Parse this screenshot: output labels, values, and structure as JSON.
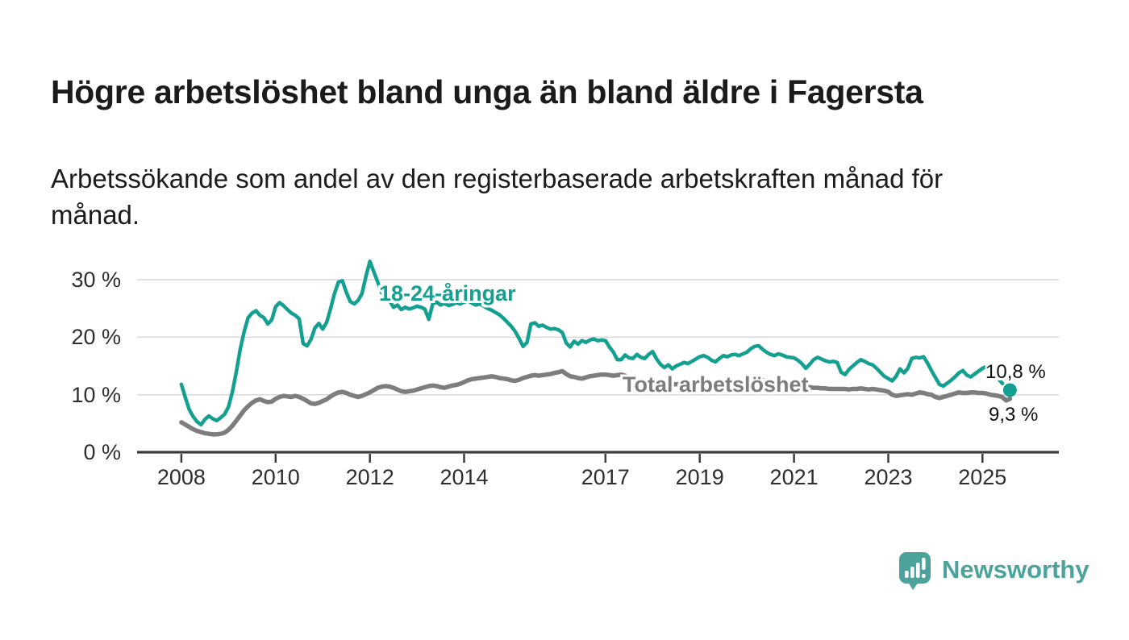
{
  "title": "Högre arbetslöshet bland unga än bland äldre i Fagersta",
  "subtitle": {
    "full": "Arbetssökande som andel av den registerbaserade arbetskraften månad för månad.",
    "line1": "Arbetssökande som andel av den registerbaserade arbetskraften månad för",
    "line2": "månad."
  },
  "branding": {
    "name": "Newsworthy",
    "color": "#4BA39C"
  },
  "colors": {
    "young_line": "#14A091",
    "total_line": "#7D7D7D",
    "grid": "#D9D9D9",
    "axis": "#3C3C3C",
    "text": "#1B1B1B"
  },
  "chart_data": {
    "type": "line",
    "title": "Högre arbetslöshet bland unga än bland äldre i Fagersta",
    "subtitle": "Arbetssökande som andel av den registerbaserade arbetskraften månad för månad.",
    "unit": "% av registerbaserad arbetskraft",
    "frequency": "monthly",
    "x_start_year": 2008,
    "x_step_years": 0.08333,
    "xlim": [
      2007.06,
      2026.62
    ],
    "ylim": [
      0,
      35
    ],
    "grid": "horizontal",
    "legend_position": "inline-labels",
    "grid_color": "#D9D9D9",
    "axis_color": "#3C3C3C",
    "x_ticks": [
      {
        "value": 2008,
        "label": "2008"
      },
      {
        "value": 2010,
        "label": "2010"
      },
      {
        "value": 2012,
        "label": "2012"
      },
      {
        "value": 2014,
        "label": "2014"
      },
      {
        "value": 2017,
        "label": "2017"
      },
      {
        "value": 2019,
        "label": "2019"
      },
      {
        "value": 2021,
        "label": "2021"
      },
      {
        "value": 2023,
        "label": "2023"
      },
      {
        "value": 2025,
        "label": "2025"
      }
    ],
    "y_ticks": [
      {
        "value": 0,
        "label": "0 %"
      },
      {
        "value": 10,
        "label": "10 %"
      },
      {
        "value": 20,
        "label": "20 %"
      },
      {
        "value": 30,
        "label": "30 %"
      }
    ],
    "series": [
      {
        "id": "young",
        "name": "18-24-åringar",
        "color": "#14A091",
        "width": 4.5,
        "end_label": "10,8 %",
        "end_value": 10.8,
        "end_dot": true,
        "dash_tail_points": 5,
        "values": [
          11.8,
          9.5,
          7.4,
          6.2,
          5.3,
          4.8,
          5.7,
          6.3,
          5.8,
          5.5,
          6.0,
          6.6,
          7.9,
          10.5,
          14.0,
          18.0,
          21.0,
          23.4,
          24.2,
          24.6,
          23.8,
          23.4,
          22.3,
          23.0,
          25.3,
          26.0,
          25.5,
          24.8,
          24.2,
          23.8,
          23.2,
          18.9,
          18.5,
          19.6,
          21.6,
          22.4,
          21.4,
          22.6,
          25.0,
          27.6,
          29.6,
          29.8,
          27.8,
          26.2,
          25.8,
          26.4,
          27.6,
          30.6,
          33.2,
          31.4,
          29.6,
          27.7,
          28.1,
          26.4,
          25.2,
          25.6,
          24.8,
          25.2,
          24.9,
          25.1,
          25.4,
          25.2,
          24.9,
          23.1,
          25.8,
          26.1,
          25.6,
          25.9,
          25.5,
          25.7,
          26.0,
          25.8,
          26.1,
          26.3,
          25.9,
          25.6,
          25.8,
          25.4,
          25.0,
          24.7,
          24.3,
          23.9,
          23.3,
          22.6,
          21.9,
          21.0,
          19.8,
          18.4,
          19.1,
          22.3,
          22.5,
          21.9,
          22.1,
          21.7,
          21.4,
          21.5,
          21.3,
          20.8,
          19.0,
          18.3,
          19.3,
          18.8,
          19.4,
          19.1,
          19.5,
          19.7,
          19.4,
          19.5,
          19.4,
          18.3,
          17.4,
          16.1,
          16.1,
          16.9,
          16.4,
          16.3,
          17.0,
          16.5,
          16.3,
          17.0,
          17.5,
          16.2,
          15.3,
          14.7,
          15.2,
          14.5,
          15.0,
          15.3,
          15.6,
          15.4,
          15.8,
          16.2,
          16.6,
          16.8,
          16.5,
          16.0,
          15.7,
          16.3,
          16.8,
          16.6,
          16.9,
          17.0,
          16.8,
          17.1,
          17.4,
          18.0,
          18.4,
          18.5,
          17.9,
          17.4,
          17.0,
          16.8,
          17.1,
          16.9,
          16.6,
          16.5,
          16.4,
          16.0,
          15.4,
          14.6,
          15.3,
          16.1,
          16.5,
          16.2,
          15.9,
          15.7,
          15.8,
          15.6,
          13.9,
          13.5,
          14.4,
          15.0,
          15.6,
          16.1,
          15.8,
          15.4,
          15.2,
          14.6,
          13.9,
          13.2,
          12.8,
          12.4,
          13.2,
          14.5,
          13.8,
          14.6,
          16.3,
          16.5,
          16.4,
          16.6,
          15.5,
          14.2,
          13.0,
          11.8,
          11.5,
          12.0,
          12.5,
          13.1,
          13.8,
          14.2,
          13.4,
          13.1,
          13.6,
          14.1,
          14.6,
          14.9,
          14.4,
          13.6,
          12.8,
          12.0,
          11.3,
          10.8
        ]
      },
      {
        "id": "total",
        "name": "Total arbetslöshet",
        "color": "#7D7D7D",
        "width": 5.5,
        "end_label": "9,3 %",
        "end_value": 9.3,
        "end_dot": false,
        "dash_tail_points": 0,
        "values": [
          5.2,
          4.8,
          4.4,
          4.0,
          3.7,
          3.5,
          3.3,
          3.2,
          3.1,
          3.1,
          3.2,
          3.4,
          3.9,
          4.6,
          5.5,
          6.4,
          7.3,
          8.0,
          8.6,
          9.0,
          9.2,
          8.9,
          8.7,
          8.8,
          9.3,
          9.6,
          9.8,
          9.7,
          9.6,
          9.8,
          9.6,
          9.3,
          8.9,
          8.5,
          8.4,
          8.6,
          8.9,
          9.2,
          9.7,
          10.1,
          10.4,
          10.5,
          10.3,
          10.0,
          9.8,
          9.6,
          9.8,
          10.1,
          10.4,
          10.8,
          11.2,
          11.4,
          11.5,
          11.4,
          11.2,
          10.9,
          10.6,
          10.5,
          10.6,
          10.7,
          10.9,
          11.1,
          11.3,
          11.5,
          11.6,
          11.5,
          11.3,
          11.2,
          11.4,
          11.6,
          11.7,
          11.9,
          12.2,
          12.5,
          12.7,
          12.8,
          12.9,
          13.0,
          13.1,
          13.2,
          13.1,
          12.9,
          12.8,
          12.7,
          12.5,
          12.4,
          12.6,
          12.9,
          13.1,
          13.3,
          13.4,
          13.3,
          13.4,
          13.5,
          13.6,
          13.8,
          13.9,
          14.1,
          13.6,
          13.2,
          13.1,
          12.9,
          12.8,
          13.0,
          13.2,
          13.3,
          13.4,
          13.5,
          13.5,
          13.4,
          13.3,
          13.4,
          13.5,
          13.3,
          12.9,
          12.5,
          12.3,
          12.2,
          12.2,
          12.1,
          12.1,
          12.0,
          12.0,
          11.9,
          11.9,
          11.8,
          11.8,
          11.9,
          11.9,
          12.0,
          12.0,
          12.1,
          12.1,
          12.0,
          11.9,
          11.9,
          11.8,
          11.8,
          11.9,
          11.9,
          12.0,
          12.0,
          12.1,
          12.2,
          12.3,
          12.5,
          12.6,
          12.6,
          12.5,
          12.4,
          12.3,
          12.2,
          12.1,
          12.0,
          11.9,
          11.8,
          11.7,
          11.6,
          11.5,
          11.4,
          11.3,
          11.2,
          11.2,
          11.1,
          11.1,
          11.0,
          11.0,
          11.0,
          11.0,
          11.0,
          10.9,
          11.0,
          11.0,
          11.1,
          11.0,
          10.9,
          11.0,
          10.9,
          10.8,
          10.7,
          10.5,
          10.0,
          9.8,
          9.9,
          10.0,
          10.1,
          10.0,
          10.2,
          10.4,
          10.3,
          10.1,
          10.0,
          9.6,
          9.4,
          9.6,
          9.8,
          10.0,
          10.2,
          10.4,
          10.3,
          10.3,
          10.4,
          10.4,
          10.3,
          10.3,
          10.2,
          10.0,
          9.9,
          9.8,
          9.6,
          9.0,
          9.3
        ]
      }
    ]
  }
}
